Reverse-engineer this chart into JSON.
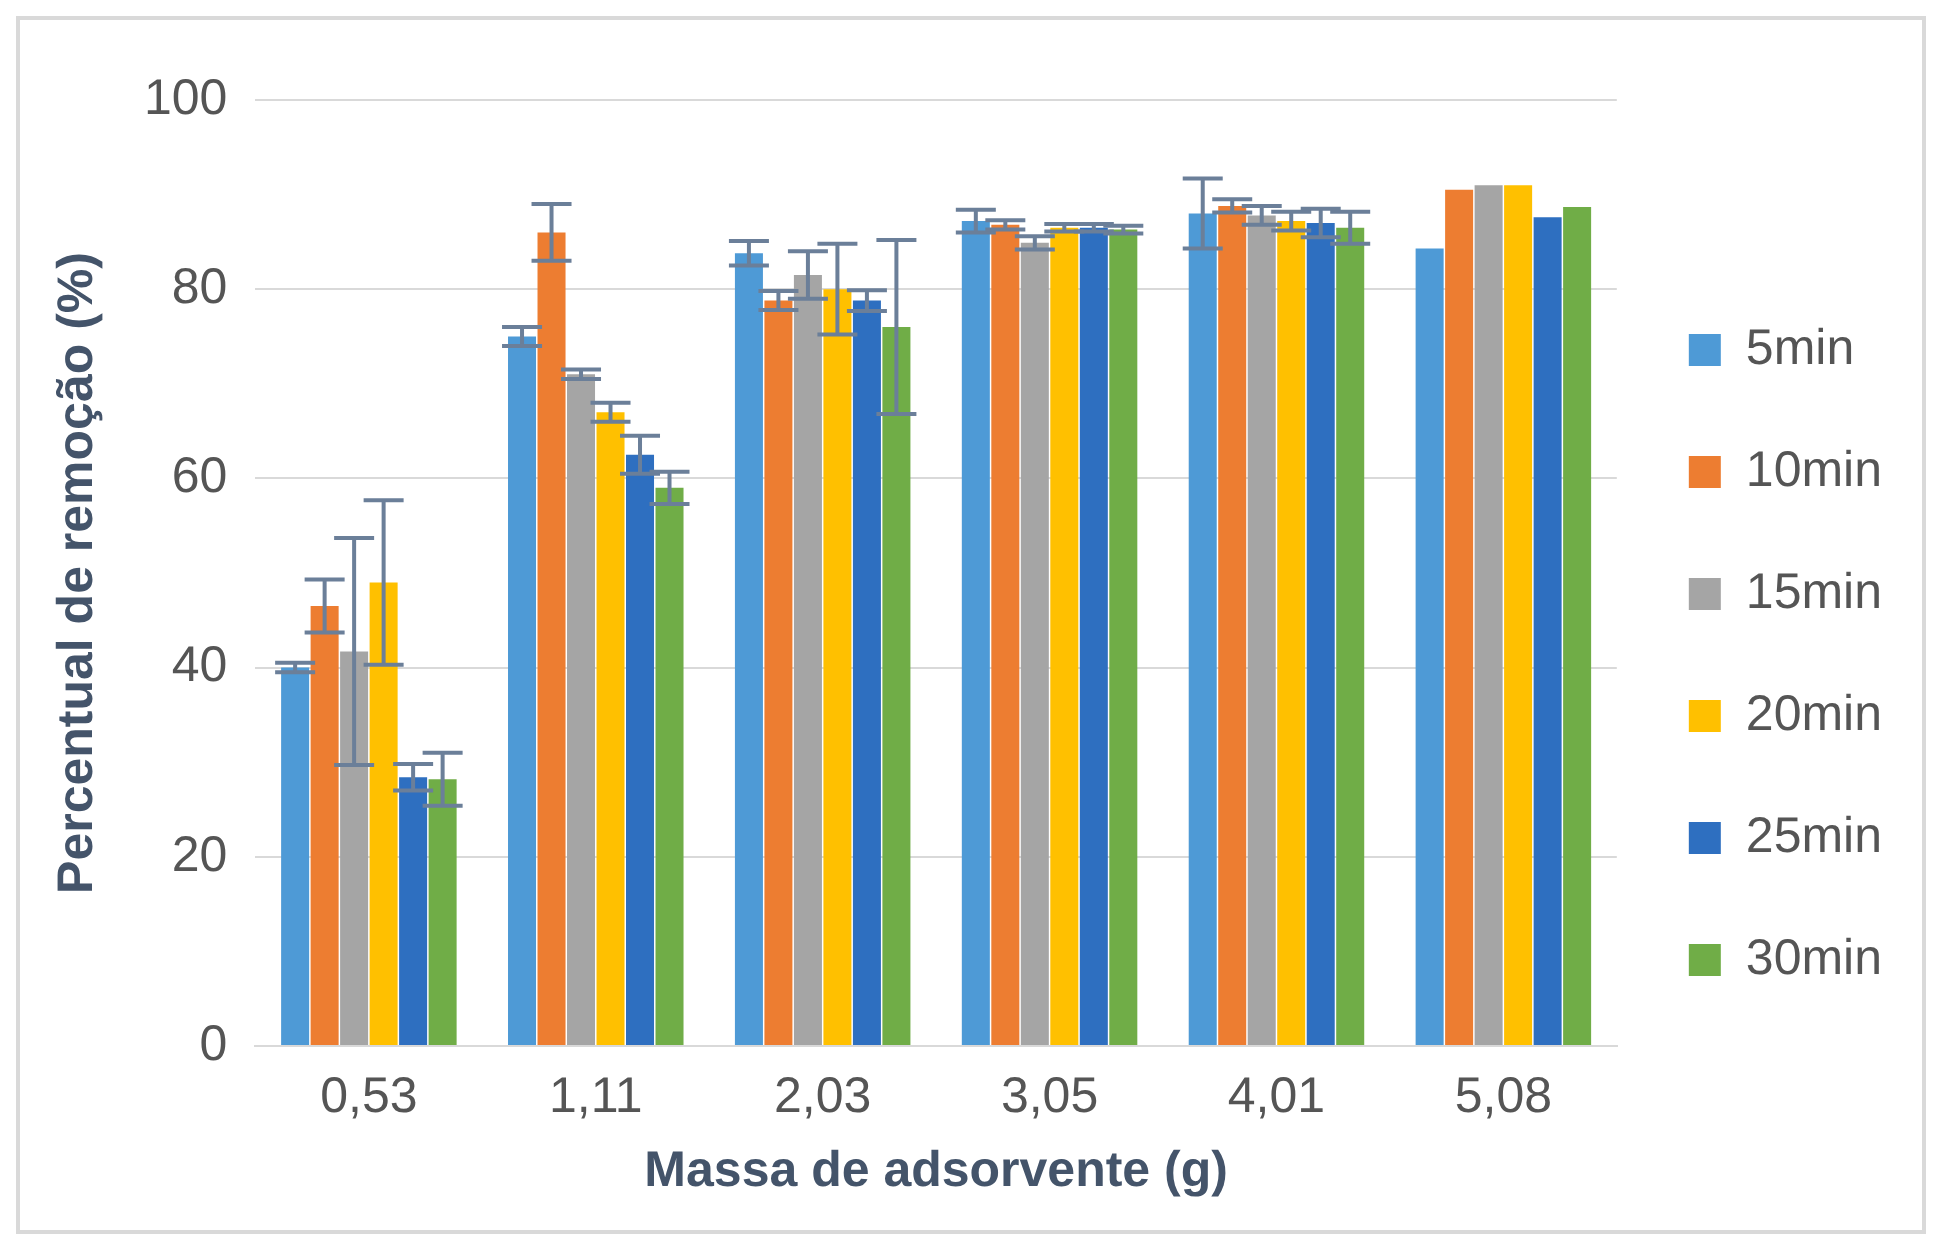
{
  "chart_data": {
    "type": "bar",
    "xlabel": "Massa de adsorvente (g)",
    "ylabel": "Percentual de remoção (%)",
    "categories": [
      "0,53",
      "1,11",
      "2,03",
      "3,05",
      "4,01",
      "5,08"
    ],
    "series": [
      {
        "name": "5min",
        "color": "#4e9ad6",
        "values": [
          40,
          75,
          83.8,
          87.2,
          88,
          84.3
        ],
        "errors": [
          0.5,
          1,
          1.3,
          1.2,
          3.7,
          null
        ]
      },
      {
        "name": "10min",
        "color": "#ed7d31",
        "values": [
          46.5,
          86,
          78.8,
          86.8,
          88.8,
          90.5
        ],
        "errors": [
          2.8,
          3,
          1,
          0.5,
          0.7,
          null
        ]
      },
      {
        "name": "15min",
        "color": "#a5a5a5",
        "values": [
          41.7,
          71,
          81.5,
          84.9,
          87.8,
          91
        ],
        "errors": [
          12,
          0.5,
          2.5,
          0.7,
          1,
          null
        ]
      },
      {
        "name": "20min",
        "color": "#ffc000",
        "values": [
          49,
          67,
          80,
          86.5,
          87.2,
          91
        ],
        "errors": [
          8.7,
          1,
          4.8,
          0.4,
          1,
          null
        ]
      },
      {
        "name": "25min",
        "color": "#2e6fc0",
        "values": [
          28.4,
          62.5,
          78.8,
          86.5,
          87,
          87.6
        ],
        "errors": [
          1.4,
          2,
          1.1,
          0.4,
          1.5,
          null
        ]
      },
      {
        "name": "30min",
        "color": "#70ad47",
        "values": [
          28.2,
          59,
          76,
          86.3,
          86.5,
          88.7
        ],
        "errors": [
          2.8,
          1.7,
          9.2,
          0.4,
          1.7,
          null
        ]
      }
    ],
    "ylim": [
      0,
      100
    ],
    "yticks": [
      0,
      20,
      40,
      60,
      80,
      100
    ],
    "grid": "y",
    "legend": "right"
  }
}
